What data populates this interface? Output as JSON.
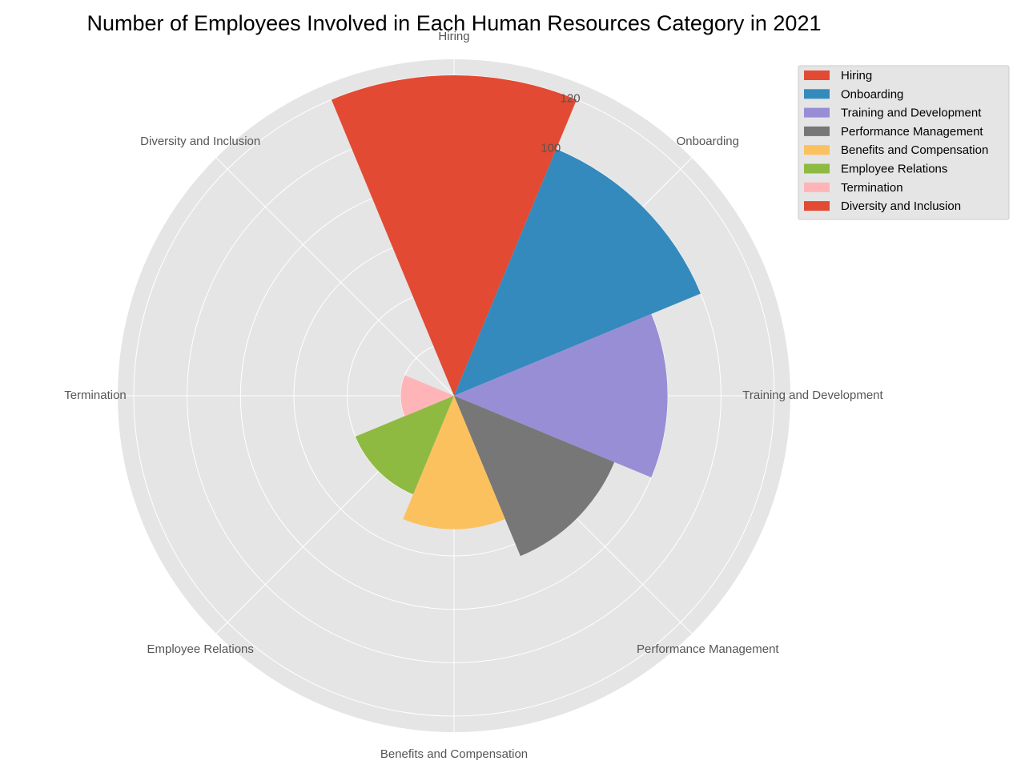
{
  "chart_data": {
    "type": "polar-bar",
    "title": "Number of Employees Involved in Each Human Resources Category in 2021",
    "categories": [
      "Hiring",
      "Onboarding",
      "Training and Development",
      "Performance Management",
      "Benefits and Compensation",
      "Employee Relations",
      "Termination",
      "Diversity and Inclusion"
    ],
    "values": [
      120,
      100,
      80,
      65,
      50,
      40,
      20,
      0
    ],
    "colors": [
      "#E24A33",
      "#348ABD",
      "#988ED5",
      "#777777",
      "#FBC15E",
      "#8EBA42",
      "#FFB5B8",
      "#E24A33"
    ],
    "radial_ticks": [
      100,
      120
    ],
    "rlim": [
      0,
      126
    ],
    "grid": true,
    "legend": {
      "position": "upper-right",
      "entries": [
        "Hiring",
        "Onboarding",
        "Training and Development",
        "Performance Management",
        "Benefits and Compensation",
        "Employee Relations",
        "Termination",
        "Diversity and Inclusion"
      ]
    }
  }
}
